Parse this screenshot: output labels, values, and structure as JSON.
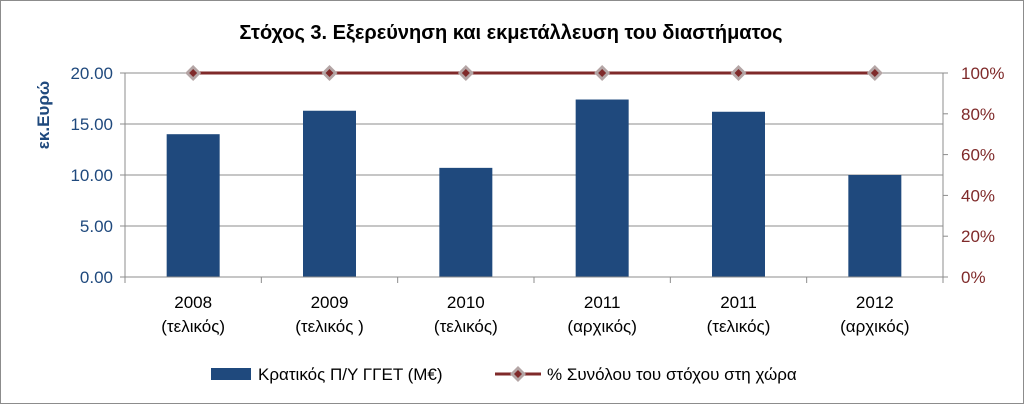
{
  "chart_data": {
    "type": "bar",
    "title": "Στόχος 3. Εξερεύνηση και εκμετάλλευση του διαστήματος",
    "ylabel": "εκ.Ευρώ",
    "ylabel_right": "",
    "xlabel": "",
    "categories": [
      [
        "2008",
        "(τελικός)"
      ],
      [
        "2009",
        "(τελικός )"
      ],
      [
        "2010",
        "(τελικός)"
      ],
      [
        "2011",
        "(αρχικός)"
      ],
      [
        "2011",
        "(τελικός)"
      ],
      [
        "2012",
        "(αρχικός)"
      ]
    ],
    "ylim": [
      0,
      20
    ],
    "ylim_right": [
      0,
      100
    ],
    "yticks": [
      "0.00",
      "5.00",
      "10.00",
      "15.00",
      "20.00"
    ],
    "yticks_right": [
      "0%",
      "20%",
      "40%",
      "60%",
      "80%",
      "100%"
    ],
    "grid": true,
    "legend_position": "bottom",
    "series": [
      {
        "name": "Κρατικός Π/Υ ΓΓΕΤ (Μ€)",
        "type": "bar",
        "axis": "left",
        "color": "#1f497d",
        "values": [
          14.0,
          16.3,
          10.7,
          17.4,
          16.2,
          10.0
        ]
      },
      {
        "name": "% Συνόλου του στόχου στη χώρα",
        "type": "line",
        "axis": "right",
        "color": "#7f2a2a",
        "marker_color": "#b4a5a5",
        "values": [
          100,
          100,
          100,
          100,
          100,
          100
        ]
      }
    ]
  }
}
